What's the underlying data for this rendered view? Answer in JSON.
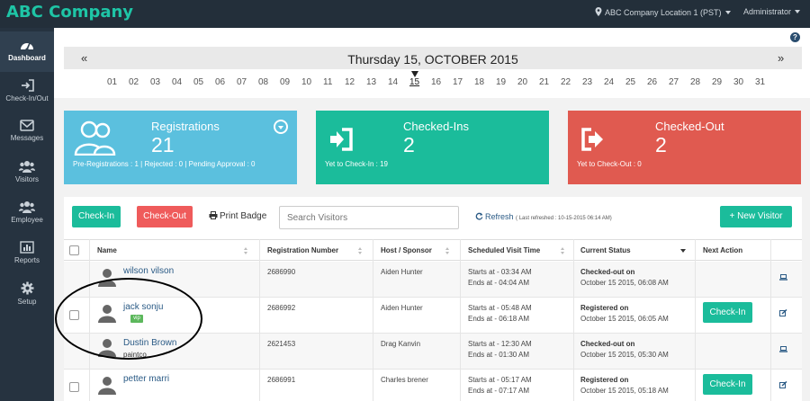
{
  "header": {
    "brand": "ABC Company",
    "location": "ABC Company Location 1 (PST)",
    "user": "Administrator"
  },
  "sidebar": {
    "items": [
      {
        "label": "Dashboard",
        "icon": "dashboard-icon",
        "active": true
      },
      {
        "label": "Check-In/Out",
        "icon": "sign-in-icon"
      },
      {
        "label": "Messages",
        "icon": "envelope-icon"
      },
      {
        "label": "Visitors",
        "icon": "users-icon"
      },
      {
        "label": "Employee",
        "icon": "users-icon"
      },
      {
        "label": "Reports",
        "icon": "bar-chart-icon"
      },
      {
        "label": "Setup",
        "icon": "gear-icon"
      }
    ]
  },
  "datebar": {
    "prev": "«",
    "next": "»",
    "title": "Thursday 15, OCTOBER 2015",
    "days": [
      "01",
      "02",
      "03",
      "04",
      "05",
      "06",
      "07",
      "08",
      "09",
      "10",
      "11",
      "12",
      "13",
      "14",
      "15",
      "16",
      "17",
      "18",
      "19",
      "20",
      "21",
      "22",
      "23",
      "24",
      "25",
      "26",
      "27",
      "28",
      "29",
      "30",
      "31"
    ],
    "current_day": "15"
  },
  "cards": {
    "registrations": {
      "title": "Registrations",
      "count": "21",
      "sub": "Pre-Registrations : 1 | Rejected : 0 | Pending Approval : 0",
      "color": "#5bc0de"
    },
    "checked_ins": {
      "title": "Checked-Ins",
      "count": "2",
      "sub": "Yet to Check-In : 19",
      "color": "#1bbc9b"
    },
    "checked_outs": {
      "title": "Checked-Out",
      "count": "2",
      "sub": "Yet to Check-Out : 0",
      "color": "#e05a50"
    }
  },
  "toolbar": {
    "checkin_label": "Check-In",
    "checkout_label": "Check-Out",
    "print_label": "Print Badge",
    "search_placeholder": "Search Visitors",
    "refresh_label": "Refresh",
    "last_refreshed": "( Last refreshed : 10-15-2015 06:14 AM)",
    "new_visitor_label": "+ New Visitor"
  },
  "table": {
    "columns": [
      "Name",
      "Registration Number",
      "Host / Sponsor",
      "Scheduled Visit Time",
      "Current Status",
      "Next Action"
    ],
    "rows": [
      {
        "name": "wilson vilson",
        "company": "",
        "vip": "",
        "reg": "2686990",
        "host": "Aiden Hunter",
        "start": "Starts at - 03:34 AM",
        "end": "Ends at - 04:04 AM",
        "status": "Checked-out on",
        "status_time": "October 15 2015, 06:08 AM",
        "action": "",
        "checkbox": false,
        "icon": "laptop-icon"
      },
      {
        "name": "jack sonju",
        "company": "",
        "vip": "vip",
        "reg": "2686992",
        "host": "Aiden Hunter",
        "start": "Starts at - 05:48 AM",
        "end": "Ends at - 06:18 AM",
        "status": "Registered on",
        "status_time": "October 15 2015, 06:05 AM",
        "action": "Check-In",
        "checkbox": true,
        "icon": "edit-icon"
      },
      {
        "name": "Dustin Brown",
        "company": "paintco",
        "vip": "",
        "reg": "2621453",
        "host": "Drag Kanvin",
        "start": "Starts at - 12:30 AM",
        "end": "Ends at - 01:30 AM",
        "status": "Checked-out on",
        "status_time": "October 15 2015, 05:30 AM",
        "action": "",
        "checkbox": false,
        "icon": "laptop-icon"
      },
      {
        "name": "petter marri",
        "company": "",
        "vip": "",
        "reg": "2686991",
        "host": "Charles brener",
        "start": "Starts at - 05:17 AM",
        "end": "Ends at - 07:17 AM",
        "status": "Registered on",
        "status_time": "October 15 2015, 05:18 AM",
        "action": "Check-In",
        "checkbox": true,
        "icon": "edit-icon"
      }
    ]
  }
}
